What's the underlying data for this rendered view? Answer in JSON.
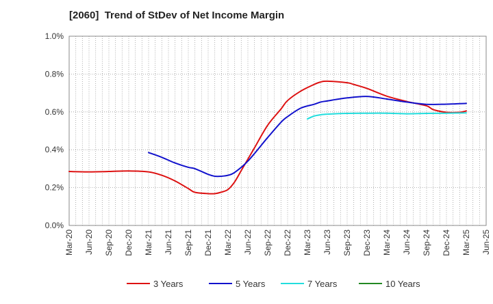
{
  "chart_data": {
    "type": "line",
    "title": "[2060]  Trend of StDev of Net Income Margin",
    "xlabel": "",
    "ylabel": "",
    "x_tick_labels": [
      "Mar-20",
      "Jun-20",
      "Sep-20",
      "Dec-20",
      "Mar-21",
      "Jun-21",
      "Sep-21",
      "Dec-21",
      "Mar-22",
      "Jun-22",
      "Sep-22",
      "Dec-22",
      "Mar-23",
      "Jun-23",
      "Sep-23",
      "Dec-23",
      "Mar-24",
      "Jun-24",
      "Sep-24",
      "Dec-24",
      "Mar-25",
      "Jun-25"
    ],
    "y_tick_labels": [
      "0.0%",
      "0.2%",
      "0.4%",
      "0.6%",
      "0.8%",
      "1.0%"
    ],
    "ylim": [
      0,
      1.0
    ],
    "y_unit": "%",
    "grid": true,
    "legend_position": "bottom",
    "series": [
      {
        "name": "3 Years",
        "color": "#dd1111",
        "x": [
          "Mar-20",
          "Jun-20",
          "Sep-20",
          "Dec-20",
          "Mar-21",
          "May-21",
          "Jul-21",
          "Sep-21",
          "Oct-21",
          "Dec-21",
          "Jan-22",
          "Feb-22",
          "Mar-22",
          "Apr-22",
          "May-22",
          "Jun-22",
          "Jul-22",
          "Sep-22",
          "Nov-22",
          "Dec-22",
          "Feb-23",
          "Apr-23",
          "May-23",
          "Jun-23",
          "Sep-23",
          "Oct-23",
          "Dec-23",
          "Mar-24",
          "Jun-24",
          "Sep-24",
          "Oct-24",
          "Dec-24",
          "Feb-25",
          "Mar-25"
        ],
        "values": [
          0.285,
          0.283,
          0.285,
          0.288,
          0.283,
          0.265,
          0.235,
          0.195,
          0.175,
          0.168,
          0.168,
          0.176,
          0.19,
          0.23,
          0.29,
          0.35,
          0.41,
          0.53,
          0.615,
          0.66,
          0.71,
          0.745,
          0.758,
          0.762,
          0.754,
          0.745,
          0.724,
          0.683,
          0.655,
          0.632,
          0.612,
          0.598,
          0.598,
          0.605
        ]
      },
      {
        "name": "5 Years",
        "color": "#1111cc",
        "x": [
          "Mar-21",
          "May-21",
          "Jul-21",
          "Sep-21",
          "Oct-21",
          "Dec-21",
          "Jan-22",
          "Feb-22",
          "Mar-22",
          "Apr-22",
          "Jun-22",
          "Sep-22",
          "Nov-22",
          "Dec-22",
          "Feb-23",
          "Apr-23",
          "May-23",
          "Jun-23",
          "Sep-23",
          "Dec-23",
          "Mar-24",
          "Jun-24",
          "Sep-24",
          "Dec-24",
          "Mar-25"
        ],
        "values": [
          0.385,
          0.36,
          0.33,
          0.307,
          0.3,
          0.27,
          0.26,
          0.26,
          0.265,
          0.28,
          0.34,
          0.465,
          0.545,
          0.575,
          0.62,
          0.64,
          0.652,
          0.658,
          0.674,
          0.682,
          0.668,
          0.652,
          0.64,
          0.641,
          0.645
        ]
      },
      {
        "name": "7 Years",
        "color": "#22dddd",
        "x": [
          "Mar-23",
          "Apr-23",
          "May-23",
          "Jun-23",
          "Sep-23",
          "Dec-23",
          "Mar-24",
          "Jun-24",
          "Sep-24",
          "Dec-24",
          "Mar-25"
        ],
        "values": [
          0.563,
          0.578,
          0.585,
          0.588,
          0.592,
          0.593,
          0.593,
          0.59,
          0.592,
          0.593,
          0.595
        ]
      },
      {
        "name": "10 Years",
        "color": "#228822",
        "x": [],
        "values": []
      }
    ]
  }
}
